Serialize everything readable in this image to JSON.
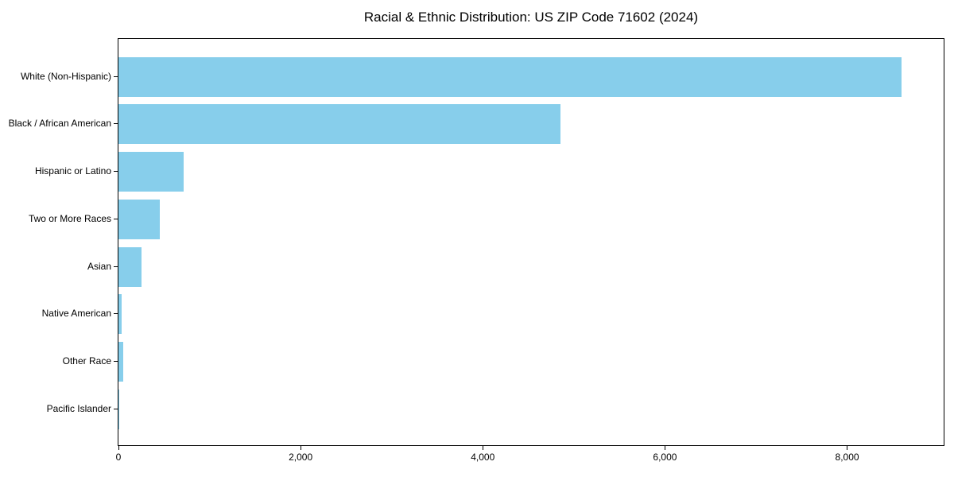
{
  "chart_data": {
    "type": "bar",
    "orientation": "horizontal",
    "title": "Racial & Ethnic Distribution: US ZIP Code 71602 (2024)",
    "categories": [
      "White (Non-Hispanic)",
      "Black / African American",
      "Hispanic or Latino",
      "Two or More Races",
      "Asian",
      "Native American",
      "Other Race",
      "Pacific Islander"
    ],
    "values": [
      8600,
      4850,
      720,
      450,
      250,
      35,
      50,
      5
    ],
    "xlabel": "",
    "ylabel": "",
    "xlim": [
      0,
      9060
    ],
    "xticks": {
      "values": [
        0,
        2000,
        4000,
        6000,
        8000
      ],
      "labels": [
        "0",
        "2,000",
        "4,000",
        "6,000",
        "8,000"
      ]
    },
    "bar_color": "#87CEEB",
    "axis_color": "#000000",
    "background_color": "#FFFFFF",
    "grid": false,
    "legend": "none"
  }
}
